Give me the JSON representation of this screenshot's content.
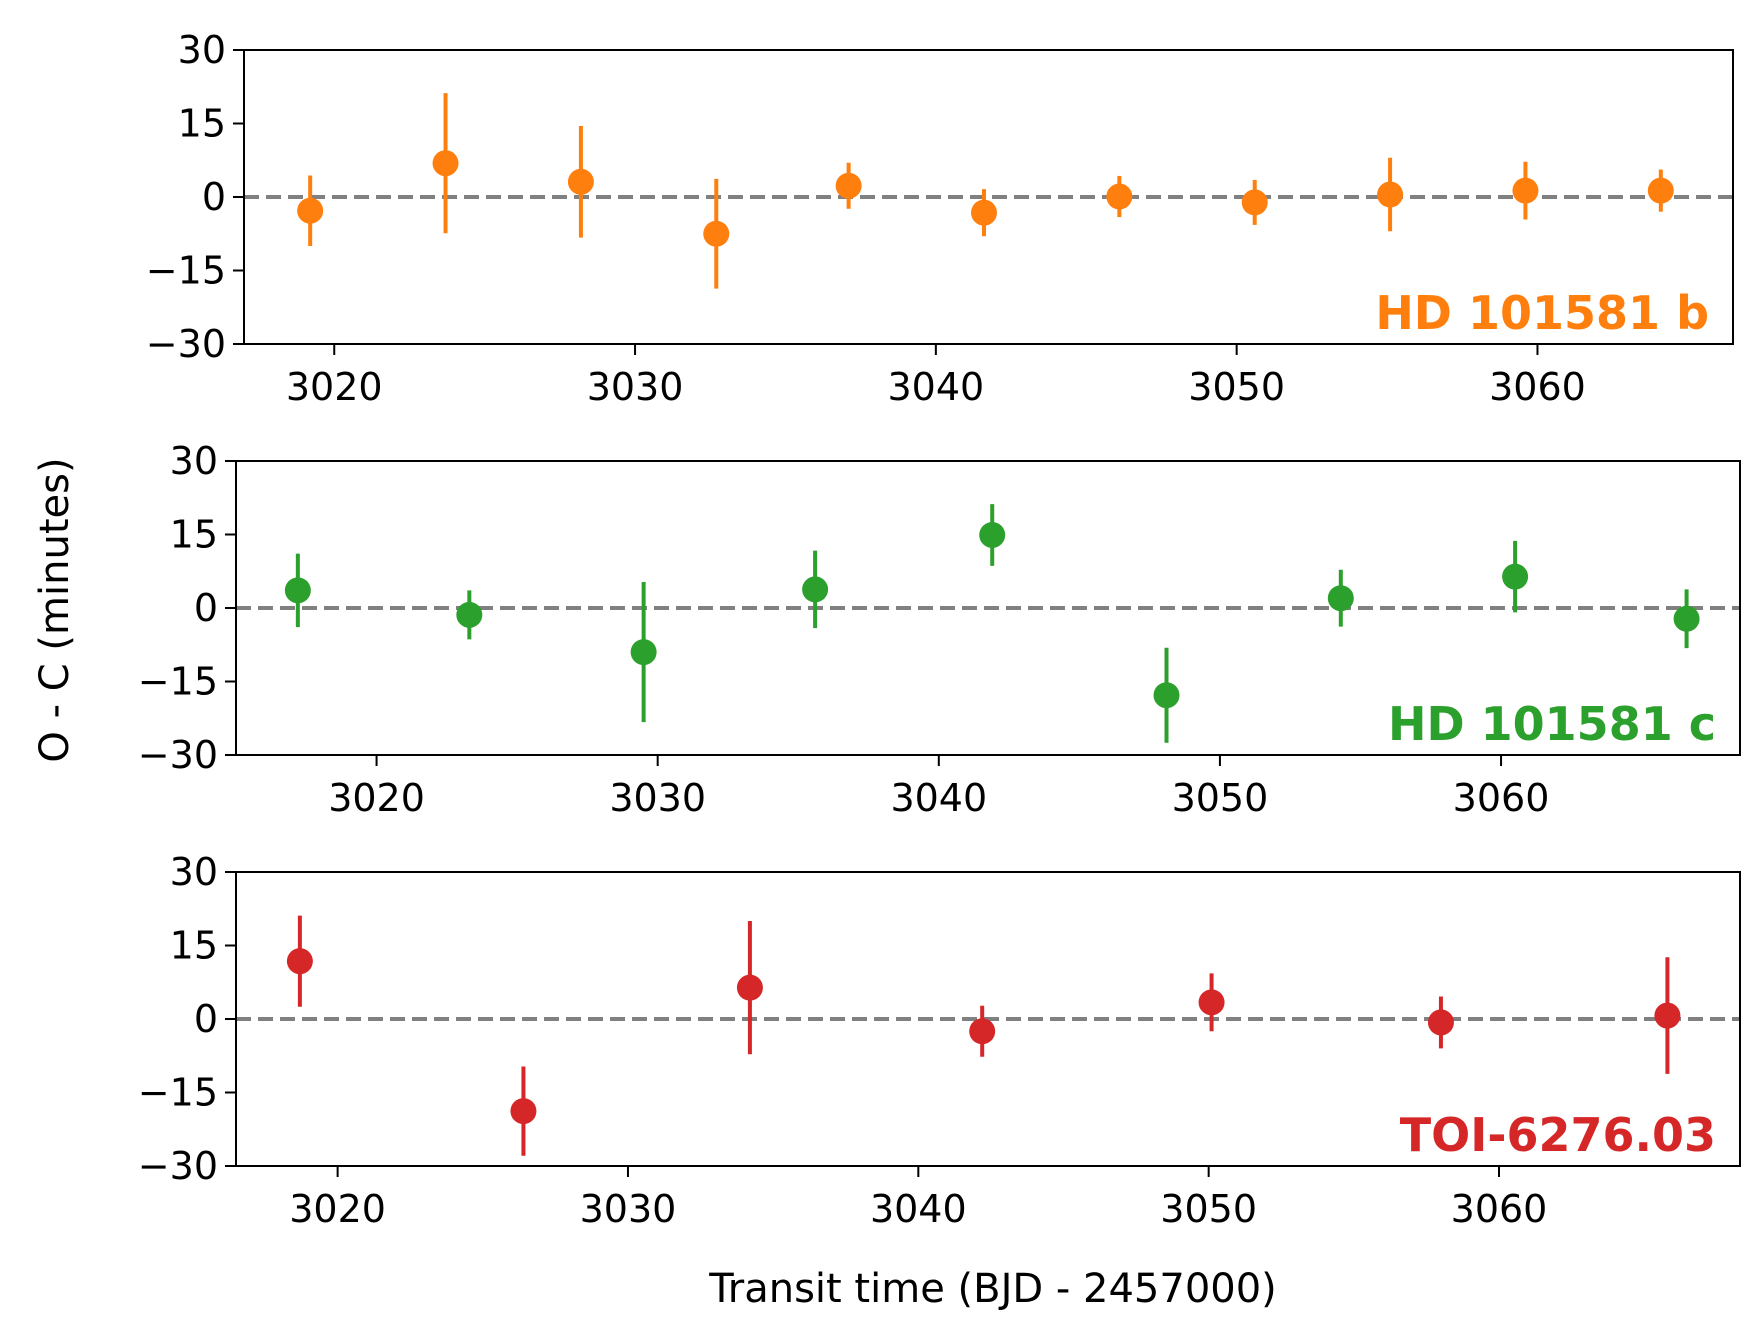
{
  "chart_data": [
    {
      "type": "scatter",
      "name": "HD 101581 b",
      "color": "#ff7f0e",
      "xlim": [
        3017,
        3066.5
      ],
      "ylim": [
        -30,
        30
      ],
      "xticks": [
        3020,
        3030,
        3040,
        3050,
        3060
      ],
      "yticks": [
        30,
        15,
        0,
        -15,
        -30
      ],
      "ytick_labels": [
        "30",
        "15",
        "0",
        "−15",
        "−30"
      ],
      "reference_line": 0,
      "points": [
        {
          "x": 3019.2,
          "y": -2.8,
          "err": 7.2
        },
        {
          "x": 3023.7,
          "y": 6.9,
          "err": 14.3
        },
        {
          "x": 3028.2,
          "y": 3.1,
          "err": 11.4
        },
        {
          "x": 3032.7,
          "y": -7.5,
          "err": 11.2
        },
        {
          "x": 3037.1,
          "y": 2.3,
          "err": 4.7
        },
        {
          "x": 3041.6,
          "y": -3.2,
          "err": 4.8
        },
        {
          "x": 3046.1,
          "y": 0.1,
          "err": 4.2
        },
        {
          "x": 3050.6,
          "y": -1.1,
          "err": 4.6
        },
        {
          "x": 3055.1,
          "y": 0.5,
          "err": 7.5
        },
        {
          "x": 3059.6,
          "y": 1.3,
          "err": 5.9
        },
        {
          "x": 3064.1,
          "y": 1.3,
          "err": 4.3
        }
      ]
    },
    {
      "type": "scatter",
      "name": "HD 101581 c",
      "color": "#2ca02c",
      "xlim": [
        3015,
        3068.5
      ],
      "ylim": [
        -30,
        30
      ],
      "xticks": [
        3020,
        3030,
        3040,
        3050,
        3060
      ],
      "yticks": [
        30,
        15,
        0,
        -15,
        -30
      ],
      "ytick_labels": [
        "30",
        "15",
        "0",
        "−15",
        "−30"
      ],
      "reference_line": 0,
      "points": [
        {
          "x": 3017.2,
          "y": 3.6,
          "err": 7.5
        },
        {
          "x": 3023.3,
          "y": -1.4,
          "err": 5.0
        },
        {
          "x": 3029.5,
          "y": -9.0,
          "err": 14.3
        },
        {
          "x": 3035.6,
          "y": 3.8,
          "err": 7.9
        },
        {
          "x": 3041.9,
          "y": 14.9,
          "err": 6.3
        },
        {
          "x": 3048.1,
          "y": -17.8,
          "err": 9.7
        },
        {
          "x": 3054.3,
          "y": 2.0,
          "err": 5.8
        },
        {
          "x": 3060.5,
          "y": 6.4,
          "err": 7.3
        },
        {
          "x": 3066.6,
          "y": -2.2,
          "err": 6.0
        }
      ]
    },
    {
      "type": "scatter",
      "name": "TOI-6276.03",
      "color": "#d62728",
      "xlim": [
        3016.5,
        3068.3
      ],
      "ylim": [
        -30,
        30
      ],
      "xticks": [
        3020,
        3030,
        3040,
        3050,
        3060
      ],
      "yticks": [
        30,
        15,
        0,
        -15,
        -30
      ],
      "ytick_labels": [
        "30",
        "15",
        "0",
        "−15",
        "−30"
      ],
      "reference_line": 0,
      "points": [
        {
          "x": 3018.7,
          "y": 11.8,
          "err": 9.3
        },
        {
          "x": 3026.4,
          "y": -18.8,
          "err": 9.1
        },
        {
          "x": 3034.2,
          "y": 6.4,
          "err": 13.6
        },
        {
          "x": 3042.2,
          "y": -2.5,
          "err": 5.2
        },
        {
          "x": 3050.1,
          "y": 3.4,
          "err": 5.9
        },
        {
          "x": 3058.0,
          "y": -0.7,
          "err": 5.3
        },
        {
          "x": 3065.8,
          "y": 0.7,
          "err": 11.9
        }
      ]
    }
  ],
  "labels": {
    "ylabel": "O - C (minutes)",
    "xlabel": "Transit time (BJD - 2457000)",
    "panel_names": [
      "HD 101581 b",
      "HD 101581 c",
      "TOI-6276.03"
    ]
  }
}
